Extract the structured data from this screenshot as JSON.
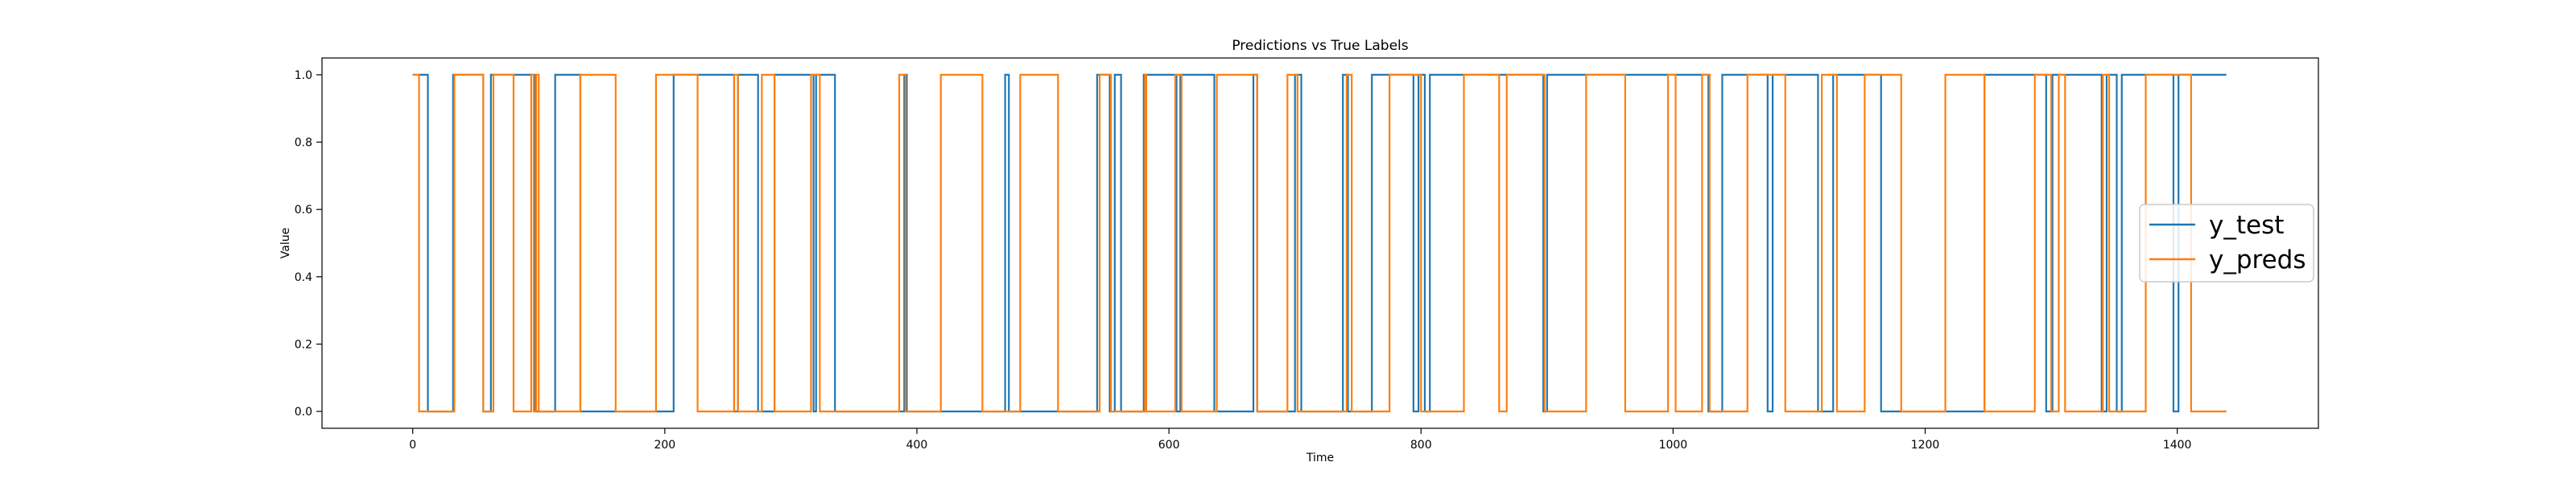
{
  "chart_data": {
    "type": "line",
    "title": "Predictions vs True Labels",
    "xlabel": "Time",
    "ylabel": "Value",
    "xlim": [
      -72,
      1512
    ],
    "ylim": [
      -0.05,
      1.05
    ],
    "xticks": [
      0,
      200,
      400,
      600,
      800,
      1000,
      1200,
      1400
    ],
    "yticks": [
      0.0,
      0.2,
      0.4,
      0.6,
      0.8,
      1.0
    ],
    "ytick_labels": [
      "0.0",
      "0.2",
      "0.4",
      "0.6",
      "0.8",
      "1.0"
    ],
    "grid": false,
    "legend_position": "center-right",
    "x_end": 1439,
    "series": [
      {
        "name": "y_test",
        "color": "#1f77b4",
        "start_value": 1,
        "transitions": [
          12,
          32,
          56,
          62,
          97,
          113,
          133,
          207,
          255,
          258,
          274,
          287,
          318,
          320,
          335,
          390,
          392,
          470,
          473,
          543,
          553,
          557,
          562,
          580,
          606,
          609,
          636,
          667,
          670,
          700,
          705,
          738,
          742,
          761,
          794,
          798,
          803,
          807,
          897,
          900,
          1028,
          1039,
          1075,
          1079,
          1115,
          1127,
          1165,
          1247,
          1296,
          1301,
          1340,
          1344,
          1352,
          1356,
          1397,
          1401
        ]
      },
      {
        "name": "y_preds",
        "color": "#ff7f0e",
        "start_value": 1,
        "transitions": [
          5,
          33,
          56,
          64,
          80,
          94,
          96,
          98,
          100,
          133,
          161,
          193,
          226,
          255,
          258,
          277,
          287,
          316,
          323,
          386,
          391,
          419,
          452,
          482,
          512,
          545,
          554,
          581,
          582,
          605,
          610,
          638,
          670,
          694,
          702,
          741,
          745,
          775,
          800,
          834,
          862,
          868,
          898,
          931,
          962,
          996,
          1002,
          1023,
          1029,
          1059,
          1089,
          1118,
          1130,
          1152,
          1181,
          1216,
          1247,
          1287,
          1300,
          1306,
          1311,
          1341,
          1346,
          1375,
          1411
        ]
      }
    ]
  }
}
